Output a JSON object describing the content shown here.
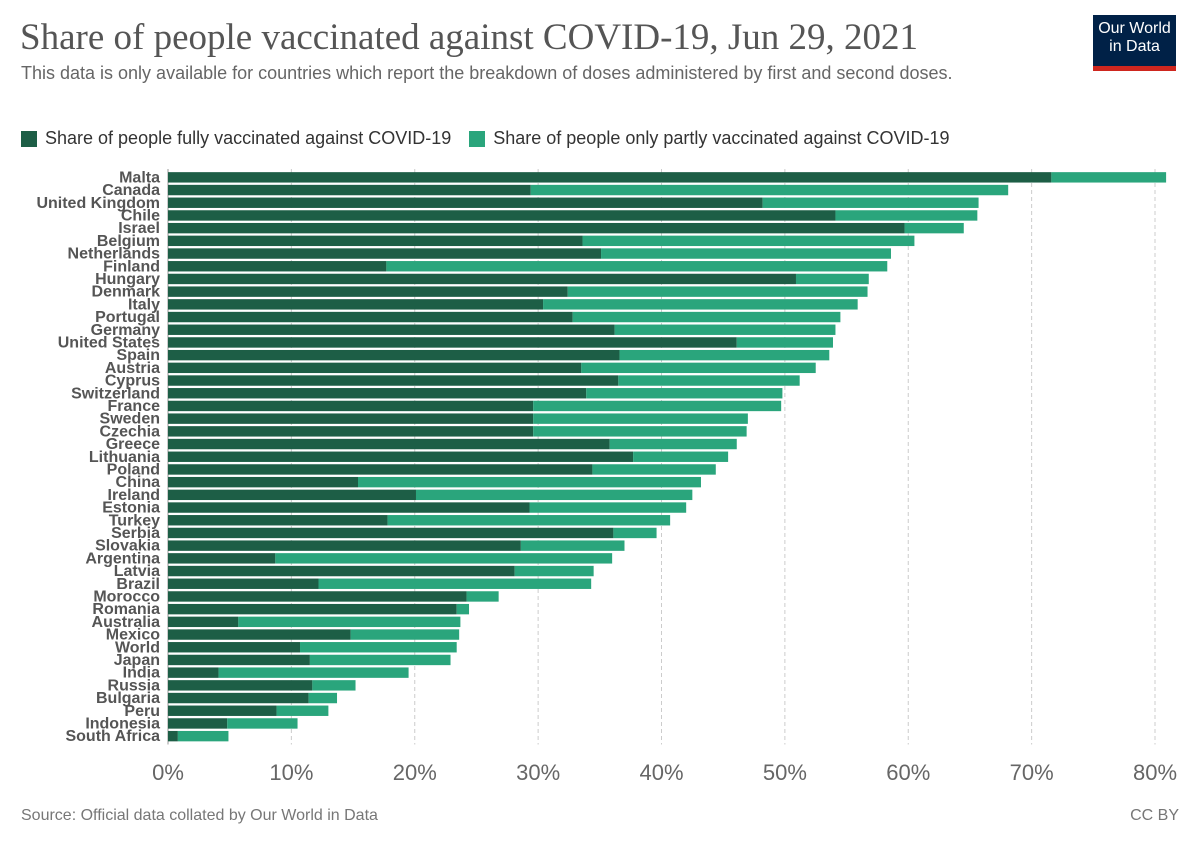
{
  "title": "Share of people vaccinated against COVID-19, Jun 29, 2021",
  "subtitle": "This data is only available for countries which report the breakdown of doses administered by first and second doses.",
  "logo": {
    "line1": "Our World",
    "line2": "in Data"
  },
  "colors": {
    "fully": "#1d5e46",
    "partly": "#2aa57c",
    "grid": "#cccccc",
    "logo_bg": "#002147",
    "logo_bar": "#ce261e"
  },
  "legend": [
    {
      "label": "Share of people fully vaccinated against COVID-19",
      "color": "#1d5e46"
    },
    {
      "label": "Share of people only partly vaccinated against COVID-19",
      "color": "#2aa57c"
    }
  ],
  "footer": {
    "source": "Source: Official data collated by Our World in Data",
    "license": "CC BY"
  },
  "chart_data": {
    "type": "bar",
    "orientation": "horizontal",
    "stacked": true,
    "categories": [
      "Malta",
      "Canada",
      "United Kingdom",
      "Chile",
      "Israel",
      "Belgium",
      "Netherlands",
      "Finland",
      "Hungary",
      "Denmark",
      "Italy",
      "Portugal",
      "Germany",
      "United States",
      "Spain",
      "Austria",
      "Cyprus",
      "Switzerland",
      "France",
      "Sweden",
      "Czechia",
      "Greece",
      "Lithuania",
      "Poland",
      "China",
      "Ireland",
      "Estonia",
      "Turkey",
      "Serbia",
      "Slovakia",
      "Argentina",
      "Latvia",
      "Brazil",
      "Morocco",
      "Romania",
      "Australia",
      "Mexico",
      "World",
      "Japan",
      "India",
      "Russia",
      "Bulgaria",
      "Peru",
      "Indonesia",
      "South Africa"
    ],
    "series": [
      {
        "name": "Share of people fully vaccinated against COVID-19",
        "values": [
          71.6,
          29.4,
          48.2,
          54.1,
          59.7,
          33.6,
          35.1,
          17.7,
          50.9,
          32.4,
          30.4,
          32.8,
          36.2,
          46.1,
          36.6,
          33.5,
          36.5,
          33.9,
          29.6,
          29.6,
          29.6,
          35.8,
          37.7,
          34.4,
          15.4,
          20.1,
          29.3,
          17.8,
          36.1,
          28.6,
          8.7,
          28.1,
          12.2,
          24.2,
          23.4,
          5.7,
          14.8,
          10.7,
          11.5,
          4.1,
          11.7,
          11.4,
          8.8,
          4.8,
          0.8
        ]
      },
      {
        "name": "Share of people only partly vaccinated against COVID-19",
        "values": [
          9.3,
          38.7,
          17.5,
          11.5,
          4.8,
          26.9,
          23.5,
          40.6,
          5.9,
          24.3,
          25.5,
          21.7,
          17.9,
          7.8,
          17.0,
          19.0,
          14.7,
          15.9,
          20.1,
          17.4,
          17.3,
          10.3,
          7.7,
          10.0,
          27.8,
          22.4,
          12.7,
          22.9,
          3.5,
          8.4,
          27.3,
          6.4,
          22.1,
          2.6,
          1.0,
          18.0,
          8.8,
          12.7,
          11.4,
          15.4,
          3.5,
          2.3,
          4.2,
          5.7,
          4.1
        ]
      }
    ],
    "xlim": [
      0,
      80
    ],
    "x_ticks": [
      0,
      10,
      20,
      30,
      40,
      50,
      60,
      70,
      80
    ],
    "x_tick_labels": [
      "0%",
      "10%",
      "20%",
      "30%",
      "40%",
      "50%",
      "60%",
      "70%",
      "80%"
    ],
    "grid": "vertical dashed",
    "legend_position": "top"
  }
}
